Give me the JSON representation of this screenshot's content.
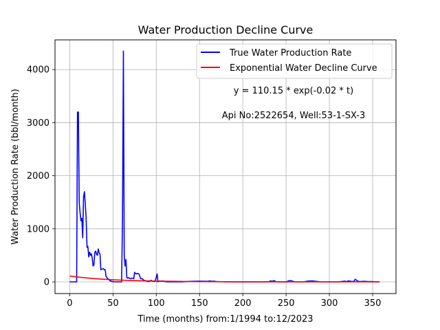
{
  "chart_data": {
    "type": "line",
    "title": "Water Production Decline Curve",
    "xlabel": "Time (months) from:1/1994 to:12/2023",
    "ylabel": "Water Production Rate (bbl/month)",
    "xlim": [
      -17,
      377
    ],
    "ylim": [
      -220,
      4560
    ],
    "xticks": [
      0,
      50,
      100,
      150,
      200,
      250,
      300,
      350
    ],
    "yticks": [
      0,
      1000,
      2000,
      3000,
      4000
    ],
    "grid": true,
    "legend_placement": "upper right",
    "annotations": [
      "y = 110.15 * exp(-0.02 * t)",
      "Api No:2522654, Well:53-1-SX-3"
    ],
    "series": [
      {
        "name": "True Water Production Rate",
        "color": "#0000ff",
        "x": [
          0,
          7,
          8,
          9,
          10,
          11,
          12,
          13,
          14,
          15,
          16,
          17,
          18,
          19,
          20,
          21,
          22,
          23,
          24,
          25,
          26,
          27,
          28,
          29,
          30,
          31,
          32,
          33,
          34,
          35,
          36,
          37,
          38,
          39,
          40,
          41,
          42,
          43,
          44,
          45,
          46,
          47,
          48,
          49,
          50,
          52,
          54,
          56,
          58,
          60,
          61,
          62,
          63,
          64,
          65,
          66,
          67,
          68,
          70,
          72,
          74,
          75,
          76,
          77,
          78,
          80,
          82,
          84,
          85,
          86,
          88,
          90,
          91,
          92,
          94,
          96,
          98,
          99,
          100,
          101,
          102,
          104,
          106,
          108,
          110,
          112,
          115,
          120,
          125,
          130,
          140,
          150,
          160,
          162,
          164,
          166,
          170,
          180,
          190,
          200,
          210,
          220,
          230,
          232,
          234,
          236,
          238,
          240,
          250,
          253,
          255,
          258,
          260,
          270,
          275,
          280,
          290,
          300,
          310,
          318,
          320,
          322,
          325,
          328,
          330,
          332,
          335,
          340,
          345,
          350,
          355,
          358
        ],
        "y": [
          0,
          0,
          0,
          3200,
          3200,
          1500,
          1300,
          1150,
          1200,
          830,
          1600,
          1700,
          1450,
          1200,
          650,
          670,
          470,
          560,
          500,
          530,
          450,
          300,
          320,
          560,
          580,
          520,
          500,
          620,
          550,
          520,
          230,
          240,
          240,
          250,
          230,
          230,
          100,
          80,
          60,
          50,
          30,
          20,
          10,
          5,
          5,
          0,
          0,
          0,
          0,
          0,
          1200,
          4350,
          500,
          300,
          420,
          80,
          70,
          80,
          60,
          70,
          60,
          180,
          160,
          150,
          160,
          150,
          60,
          60,
          40,
          30,
          20,
          10,
          5,
          10,
          30,
          10,
          10,
          30,
          90,
          150,
          0,
          20,
          10,
          20,
          5,
          0,
          0,
          0,
          0,
          0,
          10,
          15,
          10,
          20,
          10,
          15,
          5,
          0,
          0,
          0,
          0,
          0,
          0,
          20,
          10,
          25,
          5,
          0,
          0,
          20,
          25,
          10,
          0,
          0,
          15,
          20,
          0,
          0,
          0,
          15,
          5,
          20,
          10,
          5,
          50,
          20,
          5,
          10,
          5,
          5,
          0,
          0
        ]
      },
      {
        "name": "Exponential Water Decline Curve",
        "color": "#ff0000",
        "function": "110.15 * exp(-0.02 * t)",
        "x": [
          0,
          10,
          20,
          30,
          40,
          50,
          60,
          70,
          80,
          90,
          100,
          120,
          140,
          160,
          180,
          200,
          220,
          240,
          260,
          280,
          300,
          320,
          340,
          358
        ],
        "y": [
          110.15,
          90.2,
          73.8,
          60.4,
          49.5,
          40.5,
          33.2,
          27.2,
          22.2,
          18.2,
          14.9,
          10.0,
          6.7,
          4.5,
          3.0,
          2.0,
          1.3,
          0.9,
          0.6,
          0.4,
          0.3,
          0.2,
          0.1,
          0.1
        ]
      }
    ]
  }
}
